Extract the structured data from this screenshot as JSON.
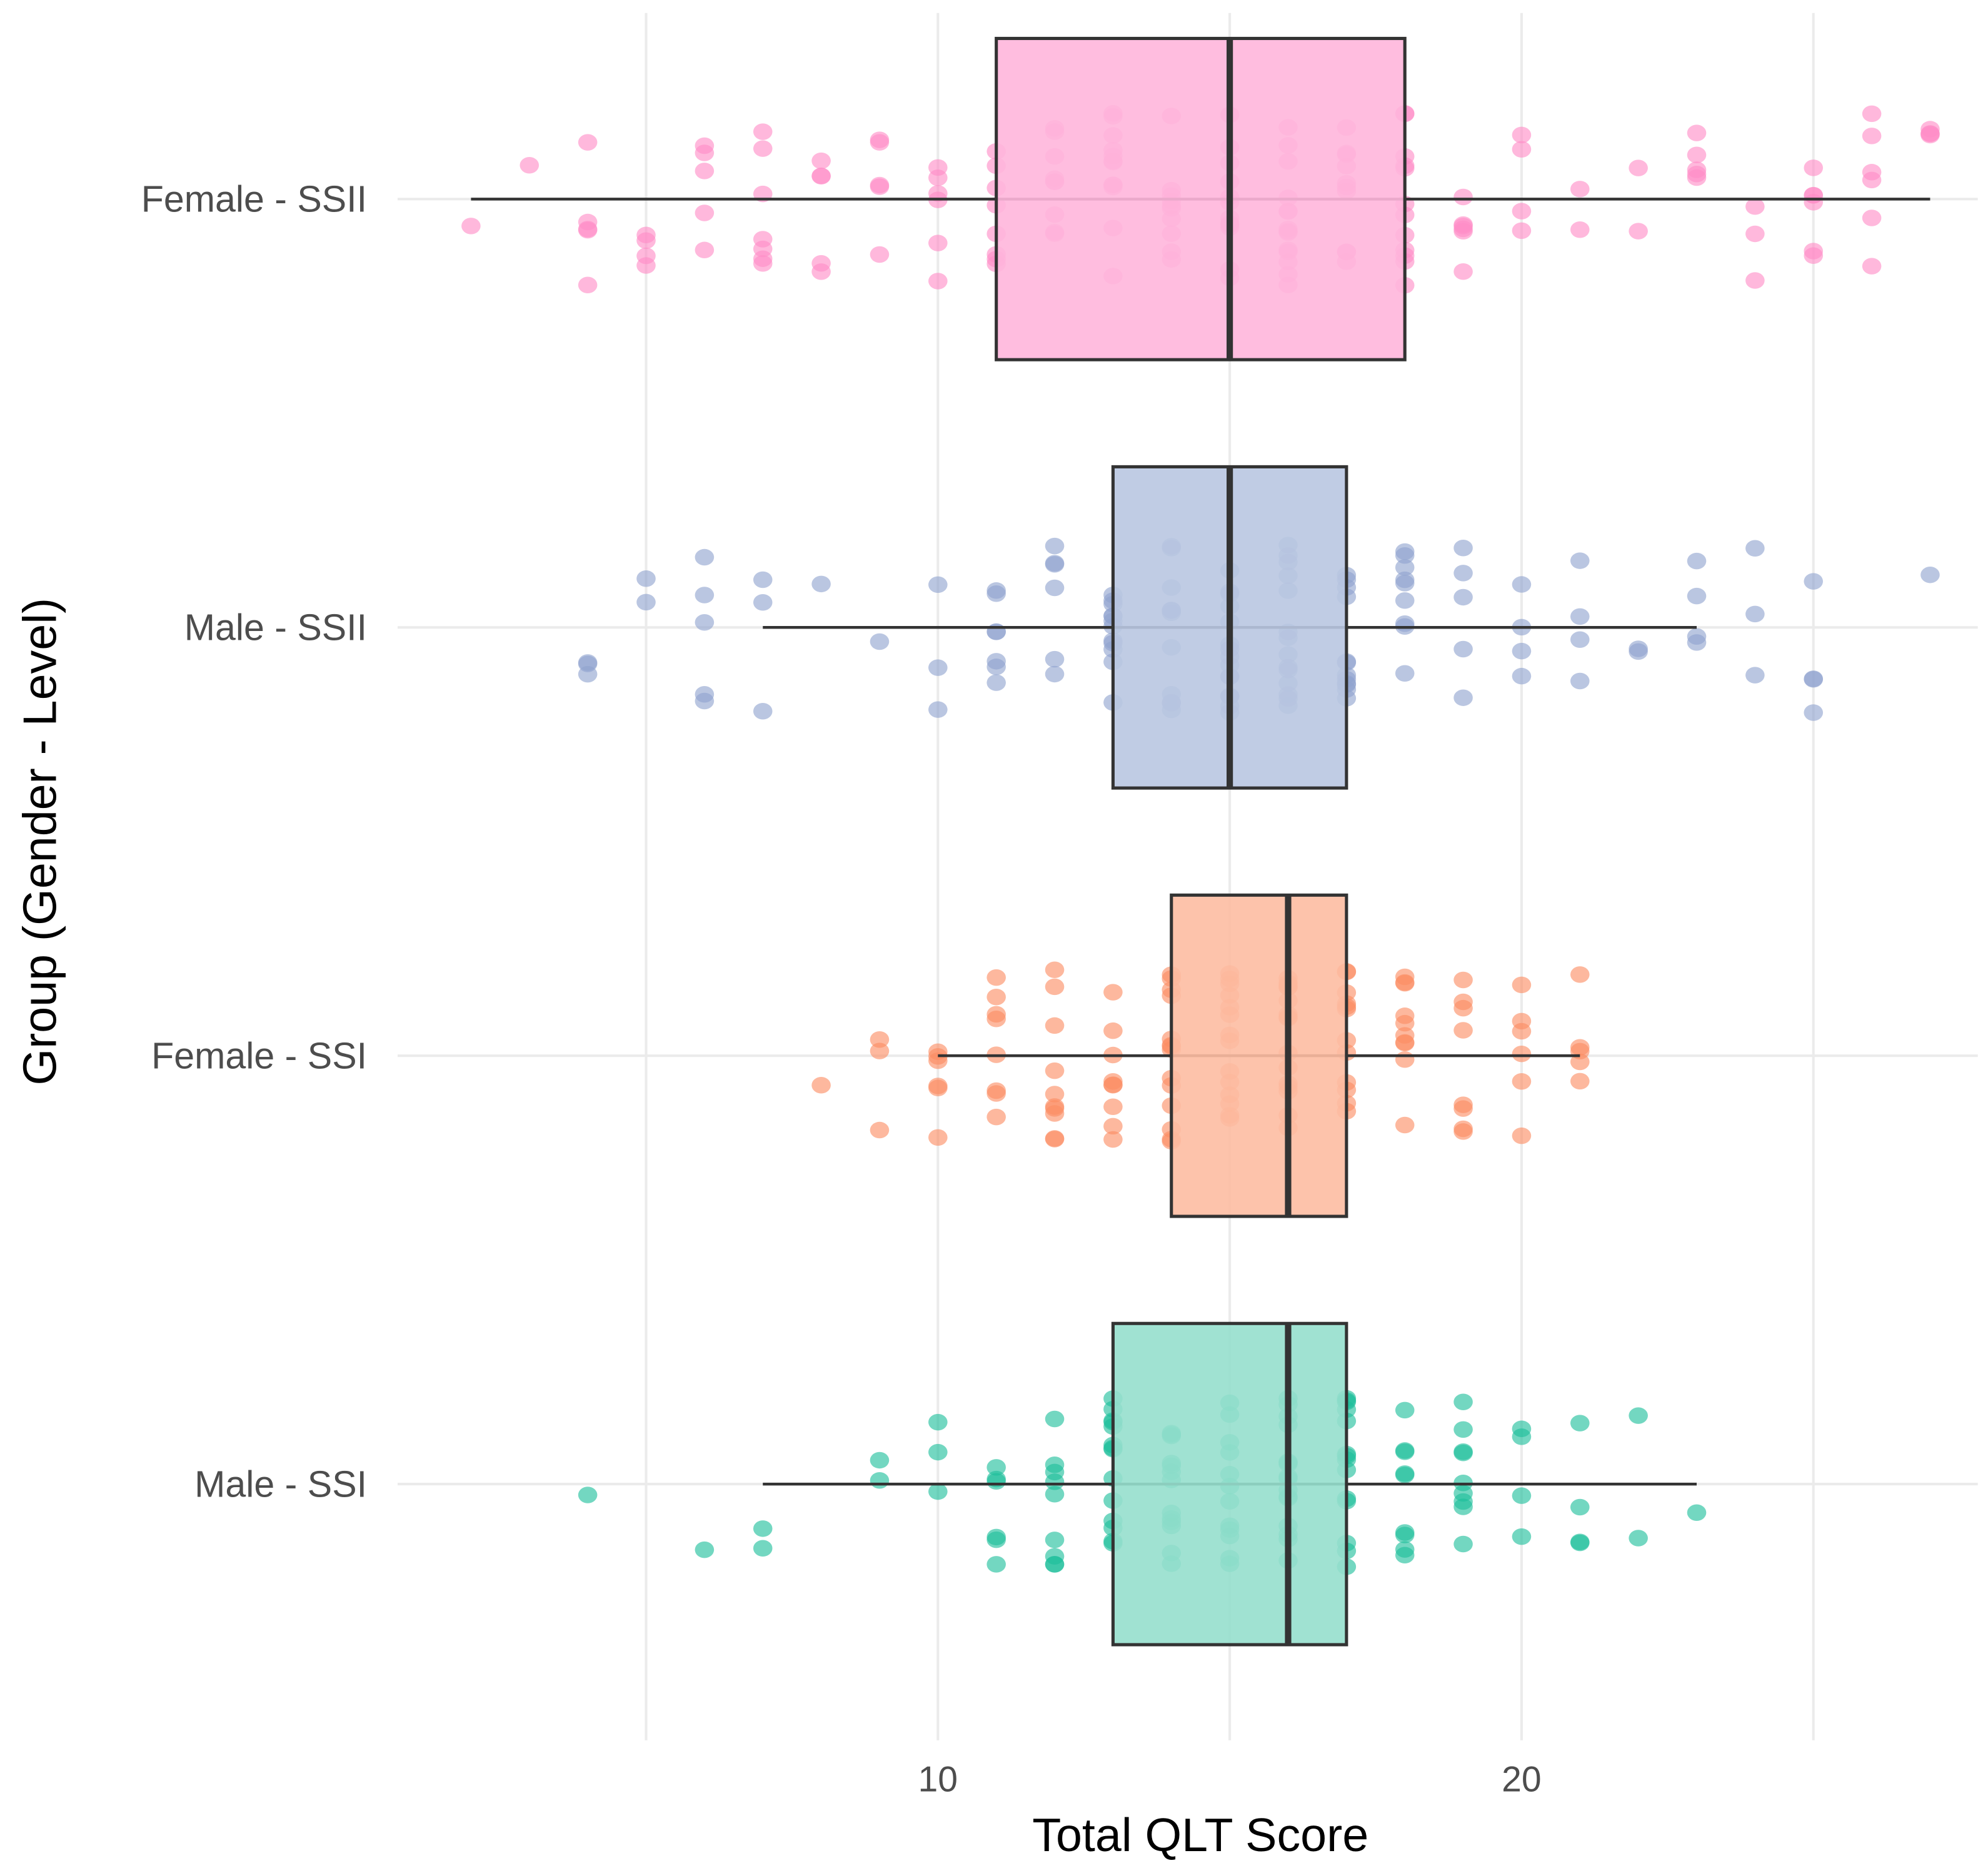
{
  "chart_data": {
    "type": "boxplot",
    "orientation": "horizontal",
    "title": "",
    "xlabel": "Total QLT Score",
    "ylabel": "Group (Gender - Level)",
    "xlim": [
      0,
      28
    ],
    "xticks": [
      10,
      20
    ],
    "xtick_labels": [
      "10",
      "20"
    ],
    "grid": true,
    "legend": "none",
    "groups": [
      {
        "name": "Female - SSII",
        "box_color": "#ffb6dc",
        "point_color": "#ff8cc6",
        "whisker_low": 2,
        "q1": 11,
        "median": 15,
        "q3": 18,
        "whisker_high": 27,
        "point_counts": {
          "2": 1,
          "3": 1,
          "4": 5,
          "5": 4,
          "6": 5,
          "7": 7,
          "8": 5,
          "9": 5,
          "10": 6,
          "11": 8,
          "12": 9,
          "13": 12,
          "14": 10,
          "15": 12,
          "16": 14,
          "17": 10,
          "18": 12,
          "19": 6,
          "20": 4,
          "21": 2,
          "22": 2,
          "23": 5,
          "24": 3,
          "25": 6,
          "26": 6,
          "27": 4
        }
      },
      {
        "name": "Male - SSII",
        "box_color": "#b9c6e1",
        "point_color": "#8fa3cf",
        "whisker_low": 7,
        "q1": 13,
        "median": 15,
        "q3": 17,
        "whisker_high": 23,
        "point_counts": {
          "4": 3,
          "5": 2,
          "6": 5,
          "7": 3,
          "8": 1,
          "9": 1,
          "10": 3,
          "11": 7,
          "12": 6,
          "13": 12,
          "14": 12,
          "15": 15,
          "16": 14,
          "17": 12,
          "18": 9,
          "19": 5,
          "20": 4,
          "21": 4,
          "22": 2,
          "23": 4,
          "24": 3,
          "25": 4,
          "27": 1
        }
      },
      {
        "name": "Female - SSI",
        "box_color": "#fdbca2",
        "point_color": "#fc8d62",
        "whisker_low": 10,
        "q1": 14,
        "median": 16,
        "q3": 17,
        "whisker_high": 21,
        "point_counts": {
          "8": 1,
          "9": 3,
          "10": 6,
          "11": 8,
          "12": 10,
          "13": 9,
          "14": 14,
          "15": 14,
          "16": 16,
          "17": 12,
          "18": 10,
          "19": 8,
          "20": 6,
          "21": 5
        }
      },
      {
        "name": "Male - SSI",
        "box_color": "#96dfcd",
        "point_color": "#1dbf9b",
        "whisker_low": 7,
        "q1": 13,
        "median": 16,
        "q3": 17,
        "whisker_high": 23,
        "point_counts": {
          "4": 1,
          "6": 1,
          "7": 2,
          "9": 2,
          "10": 3,
          "11": 6,
          "12": 9,
          "13": 14,
          "14": 13,
          "15": 12,
          "16": 16,
          "17": 14,
          "18": 9,
          "19": 9,
          "20": 4,
          "21": 4,
          "22": 2,
          "23": 1
        }
      }
    ]
  }
}
